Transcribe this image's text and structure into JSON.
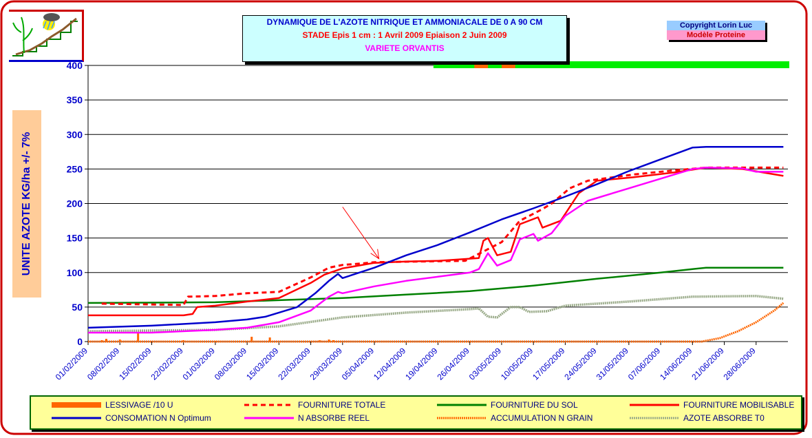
{
  "title": {
    "line1": "DYNAMIQUE DE L'AZOTE NITRIQUE ET AMMONIACALE DE 0 A 90 CM",
    "line2": "STADE Epis 1 cm : 1 Avril 2009  Epiaison  2 Juin 2009",
    "line3": "VARIETE ORVANTIS"
  },
  "copyright": {
    "line1": "Copyright Lorin Luc",
    "line2": "Modèle Proteine"
  },
  "colors": {
    "frame": "#cc0000",
    "lessivage": "#ff6600",
    "fourniture_totale": "#ff0000",
    "fourniture_sol": "#008000",
    "fourniture_mobilisable": "#ff0000",
    "consomation": "#0000cc",
    "n_absorbe": "#ff00ff",
    "accumulation": "#ff6600",
    "azote_t0": "#99aa88",
    "stage_bar": "#00ee00",
    "stage_mark": "#ff6600"
  },
  "chart_data": {
    "type": "line",
    "ylabel": "UNITE AZOTE KG/ha  +/- 7%",
    "ylim": [
      0,
      400
    ],
    "yticks": [
      "0",
      "50",
      "100",
      "150",
      "200",
      "250",
      "300",
      "350",
      "400"
    ],
    "xlim": [
      "01/02/2009",
      "05/07/2009"
    ],
    "xticks": [
      "01/02/2009",
      "08/02/2009",
      "15/02/2009",
      "22/02/2009",
      "01/03/2009",
      "08/03/2009",
      "15/03/2009",
      "22/03/2009",
      "29/03/2009",
      "05/04/2009",
      "12/04/2009",
      "19/04/2009",
      "26/04/2009",
      "03/05/2009",
      "10/05/2009",
      "17/05/2009",
      "24/05/2009",
      "31/05/2009",
      "07/06/2009",
      "14/06/2009",
      "21/06/2009",
      "28/06/2009"
    ],
    "grid": "horizontal",
    "legend_position": "bottom",
    "stage_bar": {
      "start": "18/04/2009",
      "end": "05/07/2009",
      "marks": [
        [
          "27/04/2009",
          "30/04/2009"
        ],
        [
          "03/05/2009",
          "06/05/2009"
        ]
      ]
    },
    "series": [
      {
        "name": "LESSIVAGE /10 U",
        "kind": "bar",
        "points": [
          [
            "04/02/2009",
            2
          ],
          [
            "05/02/2009",
            4
          ],
          [
            "08/02/2009",
            3
          ],
          [
            "12/02/2009",
            12
          ],
          [
            "22/02/2009",
            2
          ],
          [
            "01/03/2009",
            1
          ],
          [
            "09/03/2009",
            7
          ],
          [
            "13/03/2009",
            6
          ],
          [
            "24/03/2009",
            2
          ],
          [
            "26/03/2009",
            3
          ],
          [
            "27/03/2009",
            2
          ]
        ]
      },
      {
        "name": "FOURNITURE TOTALE",
        "kind": "dashed",
        "points": [
          [
            "04/02/2009",
            55
          ],
          [
            "22/02/2009",
            53
          ],
          [
            "23/02/2009",
            65
          ],
          [
            "01/03/2009",
            66
          ],
          [
            "08/03/2009",
            70
          ],
          [
            "15/03/2009",
            72
          ],
          [
            "22/03/2009",
            93
          ],
          [
            "26/03/2009",
            107
          ],
          [
            "29/03/2009",
            111
          ],
          [
            "02/04/2009",
            113
          ],
          [
            "05/04/2009",
            115
          ],
          [
            "25/04/2009",
            117
          ],
          [
            "03/05/2009",
            144
          ],
          [
            "07/05/2009",
            175
          ],
          [
            "12/05/2009",
            192
          ],
          [
            "14/05/2009",
            200
          ],
          [
            "18/05/2009",
            222
          ],
          [
            "22/05/2009",
            233
          ],
          [
            "01/06/2009",
            242
          ],
          [
            "10/06/2009",
            248
          ],
          [
            "17/06/2009",
            252
          ],
          [
            "29/06/2009",
            252
          ],
          [
            "04/07/2009",
            252
          ]
        ]
      },
      {
        "name": "FOURNITURE DU SOL",
        "kind": "line",
        "points": [
          [
            "01/02/2009",
            56
          ],
          [
            "01/03/2009",
            57
          ],
          [
            "15/03/2009",
            60
          ],
          [
            "29/03/2009",
            63
          ],
          [
            "12/04/2009",
            68
          ],
          [
            "26/04/2009",
            73
          ],
          [
            "10/05/2009",
            81
          ],
          [
            "24/05/2009",
            91
          ],
          [
            "07/06/2009",
            100
          ],
          [
            "14/06/2009",
            105
          ],
          [
            "17/06/2009",
            107
          ],
          [
            "04/07/2009",
            107
          ]
        ]
      },
      {
        "name": "FOURNITURE MOBILISABLE",
        "kind": "line",
        "points": [
          [
            "01/02/2009",
            38
          ],
          [
            "22/02/2009",
            38
          ],
          [
            "24/02/2009",
            40
          ],
          [
            "25/02/2009",
            50
          ],
          [
            "01/03/2009",
            52
          ],
          [
            "08/03/2009",
            58
          ],
          [
            "15/03/2009",
            63
          ],
          [
            "22/03/2009",
            85
          ],
          [
            "25/03/2009",
            97
          ],
          [
            "29/03/2009",
            106
          ],
          [
            "05/04/2009",
            114
          ],
          [
            "12/04/2009",
            116
          ],
          [
            "19/04/2009",
            117
          ],
          [
            "28/04/2009",
            121
          ],
          [
            "29/04/2009",
            146
          ],
          [
            "30/04/2009",
            150
          ],
          [
            "02/05/2009",
            125
          ],
          [
            "05/05/2009",
            130
          ],
          [
            "07/05/2009",
            170
          ],
          [
            "11/05/2009",
            180
          ],
          [
            "12/05/2009",
            165
          ],
          [
            "16/05/2009",
            175
          ],
          [
            "20/05/2009",
            215
          ],
          [
            "24/05/2009",
            233
          ],
          [
            "01/06/2009",
            238
          ],
          [
            "10/06/2009",
            245
          ],
          [
            "17/06/2009",
            252
          ],
          [
            "25/06/2009",
            250
          ],
          [
            "04/07/2009",
            240
          ]
        ]
      },
      {
        "name": "CONSOMATION N Optimum",
        "kind": "line",
        "points": [
          [
            "01/02/2009",
            20
          ],
          [
            "15/02/2009",
            23
          ],
          [
            "01/03/2009",
            28
          ],
          [
            "08/03/2009",
            32
          ],
          [
            "12/03/2009",
            36
          ],
          [
            "19/03/2009",
            50
          ],
          [
            "23/03/2009",
            70
          ],
          [
            "26/03/2009",
            88
          ],
          [
            "28/03/2009",
            98
          ],
          [
            "29/03/2009",
            92
          ],
          [
            "05/04/2009",
            107
          ],
          [
            "12/04/2009",
            125
          ],
          [
            "19/04/2009",
            140
          ],
          [
            "26/04/2009",
            158
          ],
          [
            "03/05/2009",
            177
          ],
          [
            "10/05/2009",
            193
          ],
          [
            "17/05/2009",
            210
          ],
          [
            "24/05/2009",
            228
          ],
          [
            "31/05/2009",
            247
          ],
          [
            "07/06/2009",
            264
          ],
          [
            "14/06/2009",
            281
          ],
          [
            "17/06/2009",
            282
          ],
          [
            "04/07/2009",
            282
          ]
        ]
      },
      {
        "name": "N ABSORBE REEL",
        "kind": "line",
        "points": [
          [
            "01/02/2009",
            13
          ],
          [
            "15/02/2009",
            13
          ],
          [
            "01/03/2009",
            17
          ],
          [
            "08/03/2009",
            20
          ],
          [
            "15/03/2009",
            28
          ],
          [
            "22/03/2009",
            45
          ],
          [
            "26/03/2009",
            65
          ],
          [
            "28/03/2009",
            72
          ],
          [
            "29/03/2009",
            70
          ],
          [
            "05/04/2009",
            80
          ],
          [
            "12/04/2009",
            88
          ],
          [
            "19/04/2009",
            94
          ],
          [
            "26/04/2009",
            100
          ],
          [
            "28/04/2009",
            105
          ],
          [
            "30/04/2009",
            128
          ],
          [
            "02/05/2009",
            110
          ],
          [
            "05/05/2009",
            118
          ],
          [
            "07/05/2009",
            148
          ],
          [
            "10/05/2009",
            156
          ],
          [
            "11/05/2009",
            146
          ],
          [
            "14/05/2009",
            157
          ],
          [
            "17/05/2009",
            182
          ],
          [
            "22/05/2009",
            204
          ],
          [
            "31/05/2009",
            222
          ],
          [
            "07/06/2009",
            236
          ],
          [
            "14/06/2009",
            250
          ],
          [
            "17/06/2009",
            252
          ],
          [
            "25/06/2009",
            251
          ],
          [
            "28/06/2009",
            246
          ],
          [
            "04/07/2009",
            246
          ]
        ]
      },
      {
        "name": "ACCUMULATION N GRAIN",
        "kind": "dotted",
        "points": [
          [
            "01/02/2009",
            0
          ],
          [
            "16/06/2009",
            0
          ],
          [
            "20/06/2009",
            5
          ],
          [
            "24/06/2009",
            15
          ],
          [
            "28/06/2009",
            28
          ],
          [
            "02/07/2009",
            45
          ],
          [
            "04/07/2009",
            56
          ]
        ]
      },
      {
        "name": "AZOTE ABSORBE T0",
        "kind": "dotted",
        "points": [
          [
            "01/02/2009",
            15
          ],
          [
            "01/03/2009",
            17
          ],
          [
            "15/03/2009",
            22
          ],
          [
            "29/03/2009",
            35
          ],
          [
            "12/04/2009",
            42
          ],
          [
            "26/04/2009",
            47
          ],
          [
            "28/04/2009",
            48
          ],
          [
            "30/04/2009",
            36
          ],
          [
            "02/05/2009",
            35
          ],
          [
            "03/05/2009",
            40
          ],
          [
            "05/05/2009",
            50
          ],
          [
            "07/05/2009",
            50
          ],
          [
            "09/05/2009",
            43
          ],
          [
            "13/05/2009",
            44
          ],
          [
            "17/05/2009",
            52
          ],
          [
            "31/05/2009",
            58
          ],
          [
            "14/06/2009",
            65
          ],
          [
            "28/06/2009",
            66
          ],
          [
            "04/07/2009",
            62
          ]
        ]
      }
    ]
  }
}
